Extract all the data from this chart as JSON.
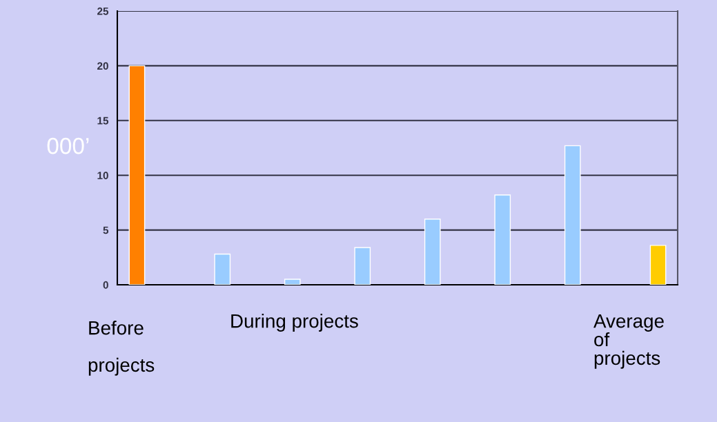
{
  "chart_data": {
    "type": "bar",
    "ylabel": "000’",
    "categories": [
      null,
      null,
      null,
      null,
      null,
      null,
      null,
      null
    ],
    "series": [
      {
        "color": "#ff8000",
        "values": [
          20,
          null,
          null,
          null,
          null,
          null,
          null,
          null
        ]
      },
      {
        "color": "#99ccff",
        "values": [
          null,
          2.8,
          0.5,
          3.4,
          6.0,
          8.2,
          12.7,
          null
        ]
      },
      {
        "color": "#ffcc00",
        "values": [
          null,
          null,
          null,
          null,
          null,
          null,
          null,
          3.6
        ]
      }
    ],
    "ylim": [
      0,
      25
    ],
    "yticks": [
      0,
      5,
      10,
      15,
      20,
      25
    ],
    "grid": "y",
    "legend": false,
    "annotations": [
      "Before\n\nprojects",
      "During projects",
      "Average\nof\nprojects"
    ]
  }
}
